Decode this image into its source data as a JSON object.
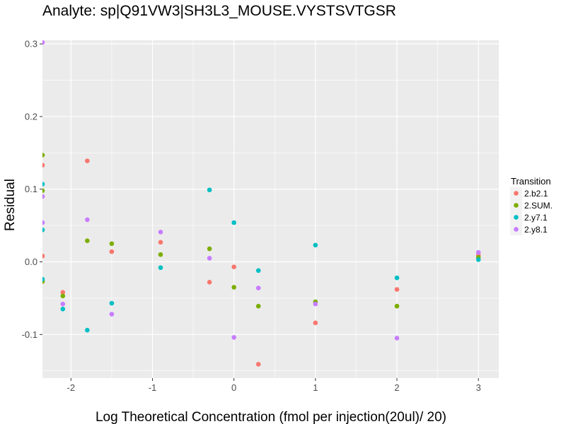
{
  "chart_data": {
    "type": "scatter",
    "title": "Analyte: sp|Q91VW3|SH3L3_MOUSE.VYSTSVTGSR",
    "xlabel": "Log Theoretical Concentration (fmol per injection(20ul)/ 20)",
    "ylabel": "Residual",
    "xlim": [
      -2.35,
      3.25
    ],
    "ylim": [
      -0.16,
      0.305
    ],
    "x_ticks": [
      -2,
      -1,
      0,
      1,
      2,
      3
    ],
    "x_tick_labels": [
      "-2",
      "-1",
      "0",
      "1",
      "2",
      "3"
    ],
    "y_ticks": [
      -0.1,
      0.0,
      0.1,
      0.2,
      0.3
    ],
    "y_tick_labels": [
      "-0.1",
      "0.0",
      "0.1",
      "0.2",
      "0.3"
    ],
    "grid": true,
    "background": "#ebebeb",
    "legend_position": "right",
    "legend_title": "Transition",
    "series": [
      {
        "name": "2.b2.1",
        "color": "#f8766d",
        "points": [
          {
            "x": -2.35,
            "y": 0.133
          },
          {
            "x": -2.35,
            "y": 0.008
          },
          {
            "x": -2.1,
            "y": -0.042
          },
          {
            "x": -1.8,
            "y": 0.139
          },
          {
            "x": -1.5,
            "y": 0.014
          },
          {
            "x": -0.9,
            "y": 0.027
          },
          {
            "x": -0.3,
            "y": -0.028
          },
          {
            "x": 0.0,
            "y": -0.007
          },
          {
            "x": 0.3,
            "y": -0.141
          },
          {
            "x": 1.0,
            "y": -0.084
          },
          {
            "x": 2.0,
            "y": -0.038
          },
          {
            "x": 3.0,
            "y": 0.009
          }
        ]
      },
      {
        "name": "2.SUM.",
        "color": "#7cae00",
        "points": [
          {
            "x": -2.35,
            "y": 0.147
          },
          {
            "x": -2.35,
            "y": 0.098
          },
          {
            "x": -2.35,
            "y": -0.027
          },
          {
            "x": -2.1,
            "y": -0.047
          },
          {
            "x": -1.8,
            "y": 0.029
          },
          {
            "x": -1.5,
            "y": 0.025
          },
          {
            "x": -0.9,
            "y": 0.01
          },
          {
            "x": -0.3,
            "y": 0.018
          },
          {
            "x": 0.0,
            "y": -0.035
          },
          {
            "x": 0.3,
            "y": -0.061
          },
          {
            "x": 1.0,
            "y": -0.055
          },
          {
            "x": 2.0,
            "y": -0.061
          },
          {
            "x": 3.0,
            "y": 0.006
          }
        ]
      },
      {
        "name": "2.y7.1",
        "color": "#00bfc4",
        "points": [
          {
            "x": -2.35,
            "y": 0.107
          },
          {
            "x": -2.35,
            "y": 0.044
          },
          {
            "x": -2.35,
            "y": -0.024
          },
          {
            "x": -2.1,
            "y": -0.065
          },
          {
            "x": -1.8,
            "y": -0.094
          },
          {
            "x": -1.5,
            "y": -0.057
          },
          {
            "x": -0.9,
            "y": -0.008
          },
          {
            "x": -0.3,
            "y": 0.099
          },
          {
            "x": 0.0,
            "y": 0.054
          },
          {
            "x": 0.3,
            "y": -0.012
          },
          {
            "x": 1.0,
            "y": 0.023
          },
          {
            "x": 2.0,
            "y": -0.022
          },
          {
            "x": 3.0,
            "y": 0.003
          }
        ]
      },
      {
        "name": "2.y8.1",
        "color": "#c77cff",
        "points": [
          {
            "x": -2.35,
            "y": 0.302
          },
          {
            "x": -2.35,
            "y": 0.09
          },
          {
            "x": -2.35,
            "y": 0.054
          },
          {
            "x": -2.1,
            "y": -0.058
          },
          {
            "x": -1.8,
            "y": 0.058
          },
          {
            "x": -1.5,
            "y": -0.072
          },
          {
            "x": -0.9,
            "y": 0.041
          },
          {
            "x": -0.3,
            "y": 0.005
          },
          {
            "x": 0.0,
            "y": -0.104
          },
          {
            "x": 0.3,
            "y": -0.036
          },
          {
            "x": 1.0,
            "y": -0.058
          },
          {
            "x": 2.0,
            "y": -0.105
          },
          {
            "x": 3.0,
            "y": 0.013
          }
        ]
      }
    ]
  }
}
